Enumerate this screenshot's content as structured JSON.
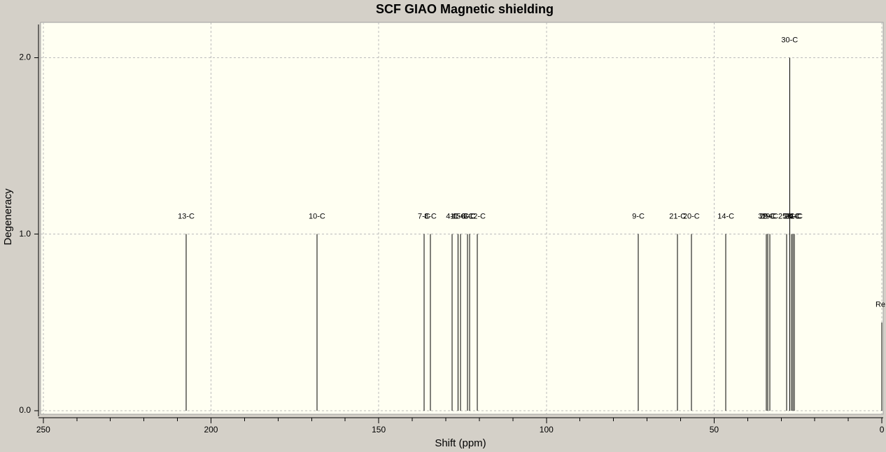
{
  "chart_data": {
    "type": "stick",
    "title": "SCF GIAO Magnetic shielding",
    "x_label": "Shift (ppm)",
    "y_label": "Degeneracy",
    "labels": [
      "13-C",
      "10-C",
      "7-C",
      "8-C",
      "4-C",
      "11-C",
      "15-C",
      "6-C",
      "3-C",
      "12-C",
      "9-C",
      "21-C",
      "20-C",
      "14-C",
      "32-C",
      "29-C",
      "19-C",
      "25-C",
      "30-C",
      "28-C",
      "24-C",
      "31-C",
      "Re"
    ],
    "x": [
      207.4,
      168.4,
      136.5,
      134.6,
      128.1,
      126.3,
      125.6,
      123.5,
      122.9,
      120.6,
      72.6,
      60.9,
      56.8,
      46.5,
      34.4,
      34.0,
      33.4,
      28.4,
      27.5,
      26.9,
      26.5,
      26.1,
      0
    ],
    "values": [
      1,
      1,
      1,
      1,
      1,
      1,
      1,
      1,
      1,
      1,
      1,
      1,
      1,
      1,
      1,
      1,
      1,
      1,
      2,
      1,
      1,
      1,
      0.5
    ],
    "color": "#000000",
    "xlim": [
      250.8,
      -0.4
    ],
    "xticks": [
      250,
      200,
      150,
      100,
      50,
      0
    ],
    "xminor_ticks": [
      240,
      230,
      220,
      210,
      190,
      180,
      170,
      160,
      140,
      130,
      120,
      110,
      90,
      80,
      70,
      60,
      40,
      30,
      20,
      10
    ],
    "ylim": [
      -0.02,
      2.2
    ],
    "yticks": [
      {
        "value": 0,
        "label": "0.0"
      },
      {
        "value": 1,
        "label": "1.0"
      },
      {
        "value": 2,
        "label": "2.0"
      }
    ],
    "grid": true
  }
}
